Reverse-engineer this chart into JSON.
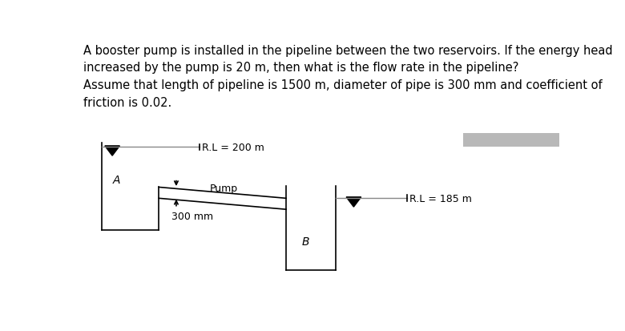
{
  "title_text": "A booster pump is installed in the pipeline between the two reservoirs. If the energy head\nincreased by the pump is 20 m, then what is the flow rate in the pipeline?\nAssume that length of pipeline is 1500 m, diameter of pipe is 300 mm and coefficient of\nfriction is 0.02.",
  "rl_A": "R.L = 200 m",
  "rl_B": "R.L = 185 m",
  "label_A": "A",
  "label_B": "B",
  "label_pump": "Pump",
  "label_pipe": "300 mm",
  "bg_color": "#ffffff",
  "line_color": "#000000",
  "gray_rect_color": "#b8b8b8",
  "title_fontsize": 10.5,
  "diagram_fontsize": 9
}
